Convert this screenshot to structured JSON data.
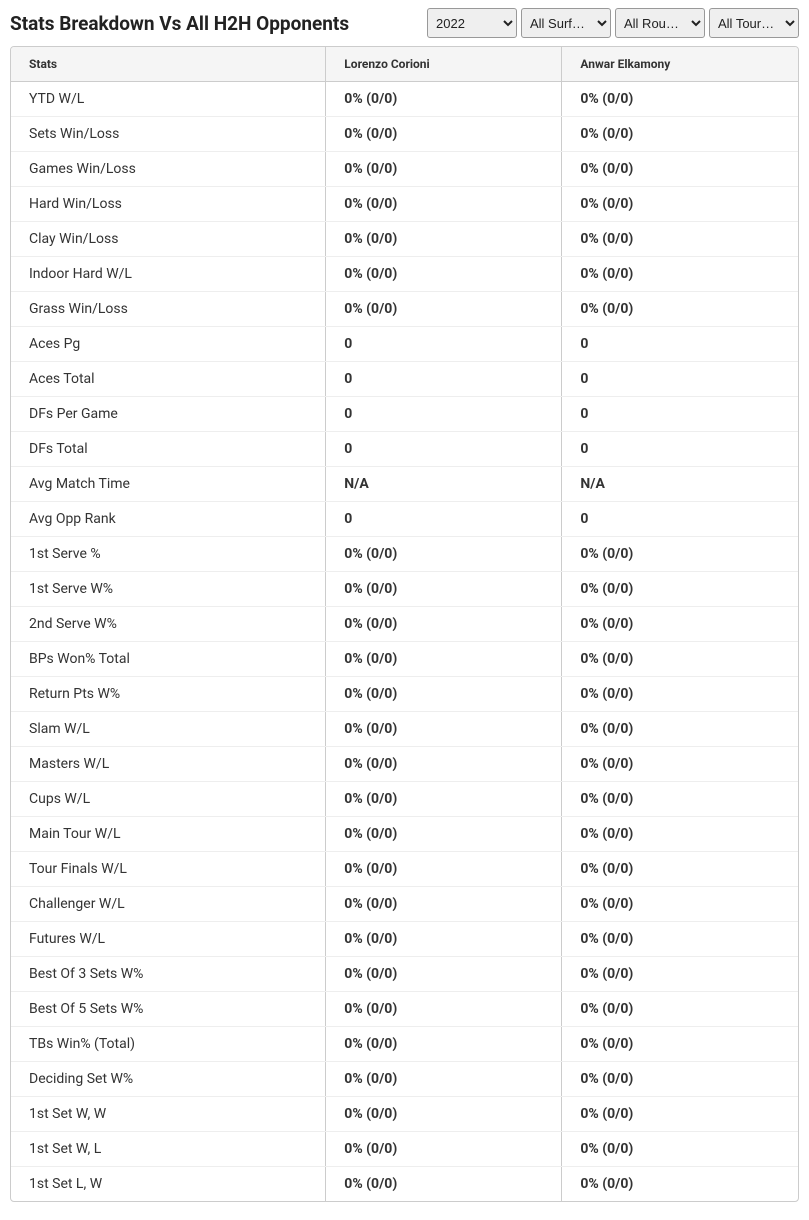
{
  "header": {
    "title": "Stats Breakdown Vs All H2H Opponents"
  },
  "filters": {
    "year": "2022",
    "surface": "All Surf…",
    "round": "All Rou…",
    "tour": "All Tour…"
  },
  "table": {
    "columns": {
      "stats": "Stats",
      "player1": "Lorenzo Corioni",
      "player2": "Anwar Elkamony"
    },
    "rows": [
      {
        "stat": "YTD W/L",
        "p1": "0% (0/0)",
        "p2": "0% (0/0)"
      },
      {
        "stat": "Sets Win/Loss",
        "p1": "0% (0/0)",
        "p2": "0% (0/0)"
      },
      {
        "stat": "Games Win/Loss",
        "p1": "0% (0/0)",
        "p2": "0% (0/0)"
      },
      {
        "stat": "Hard Win/Loss",
        "p1": "0% (0/0)",
        "p2": "0% (0/0)"
      },
      {
        "stat": "Clay Win/Loss",
        "p1": "0% (0/0)",
        "p2": "0% (0/0)"
      },
      {
        "stat": "Indoor Hard W/L",
        "p1": "0% (0/0)",
        "p2": "0% (0/0)"
      },
      {
        "stat": "Grass Win/Loss",
        "p1": "0% (0/0)",
        "p2": "0% (0/0)"
      },
      {
        "stat": "Aces Pg",
        "p1": "0",
        "p2": "0"
      },
      {
        "stat": "Aces Total",
        "p1": "0",
        "p2": "0"
      },
      {
        "stat": "DFs Per Game",
        "p1": "0",
        "p2": "0"
      },
      {
        "stat": "DFs Total",
        "p1": "0",
        "p2": "0"
      },
      {
        "stat": "Avg Match Time",
        "p1": "N/A",
        "p2": "N/A"
      },
      {
        "stat": "Avg Opp Rank",
        "p1": "0",
        "p2": "0"
      },
      {
        "stat": "1st Serve %",
        "p1": "0% (0/0)",
        "p2": "0% (0/0)"
      },
      {
        "stat": "1st Serve W%",
        "p1": "0% (0/0)",
        "p2": "0% (0/0)"
      },
      {
        "stat": "2nd Serve W%",
        "p1": "0% (0/0)",
        "p2": "0% (0/0)"
      },
      {
        "stat": "BPs Won% Total",
        "p1": "0% (0/0)",
        "p2": "0% (0/0)"
      },
      {
        "stat": "Return Pts W%",
        "p1": "0% (0/0)",
        "p2": "0% (0/0)"
      },
      {
        "stat": "Slam W/L",
        "p1": "0% (0/0)",
        "p2": "0% (0/0)"
      },
      {
        "stat": "Masters W/L",
        "p1": "0% (0/0)",
        "p2": "0% (0/0)"
      },
      {
        "stat": "Cups W/L",
        "p1": "0% (0/0)",
        "p2": "0% (0/0)"
      },
      {
        "stat": "Main Tour W/L",
        "p1": "0% (0/0)",
        "p2": "0% (0/0)"
      },
      {
        "stat": "Tour Finals W/L",
        "p1": "0% (0/0)",
        "p2": "0% (0/0)"
      },
      {
        "stat": "Challenger W/L",
        "p1": "0% (0/0)",
        "p2": "0% (0/0)"
      },
      {
        "stat": "Futures W/L",
        "p1": "0% (0/0)",
        "p2": "0% (0/0)"
      },
      {
        "stat": "Best Of 3 Sets W%",
        "p1": "0% (0/0)",
        "p2": "0% (0/0)"
      },
      {
        "stat": "Best Of 5 Sets W%",
        "p1": "0% (0/0)",
        "p2": "0% (0/0)"
      },
      {
        "stat": "TBs Win% (Total)",
        "p1": "0% (0/0)",
        "p2": "0% (0/0)"
      },
      {
        "stat": "Deciding Set W%",
        "p1": "0% (0/0)",
        "p2": "0% (0/0)"
      },
      {
        "stat": "1st Set W, W",
        "p1": "0% (0/0)",
        "p2": "0% (0/0)"
      },
      {
        "stat": "1st Set W, L",
        "p1": "0% (0/0)",
        "p2": "0% (0/0)"
      },
      {
        "stat": "1st Set L, W",
        "p1": "0% (0/0)",
        "p2": "0% (0/0)"
      }
    ]
  }
}
